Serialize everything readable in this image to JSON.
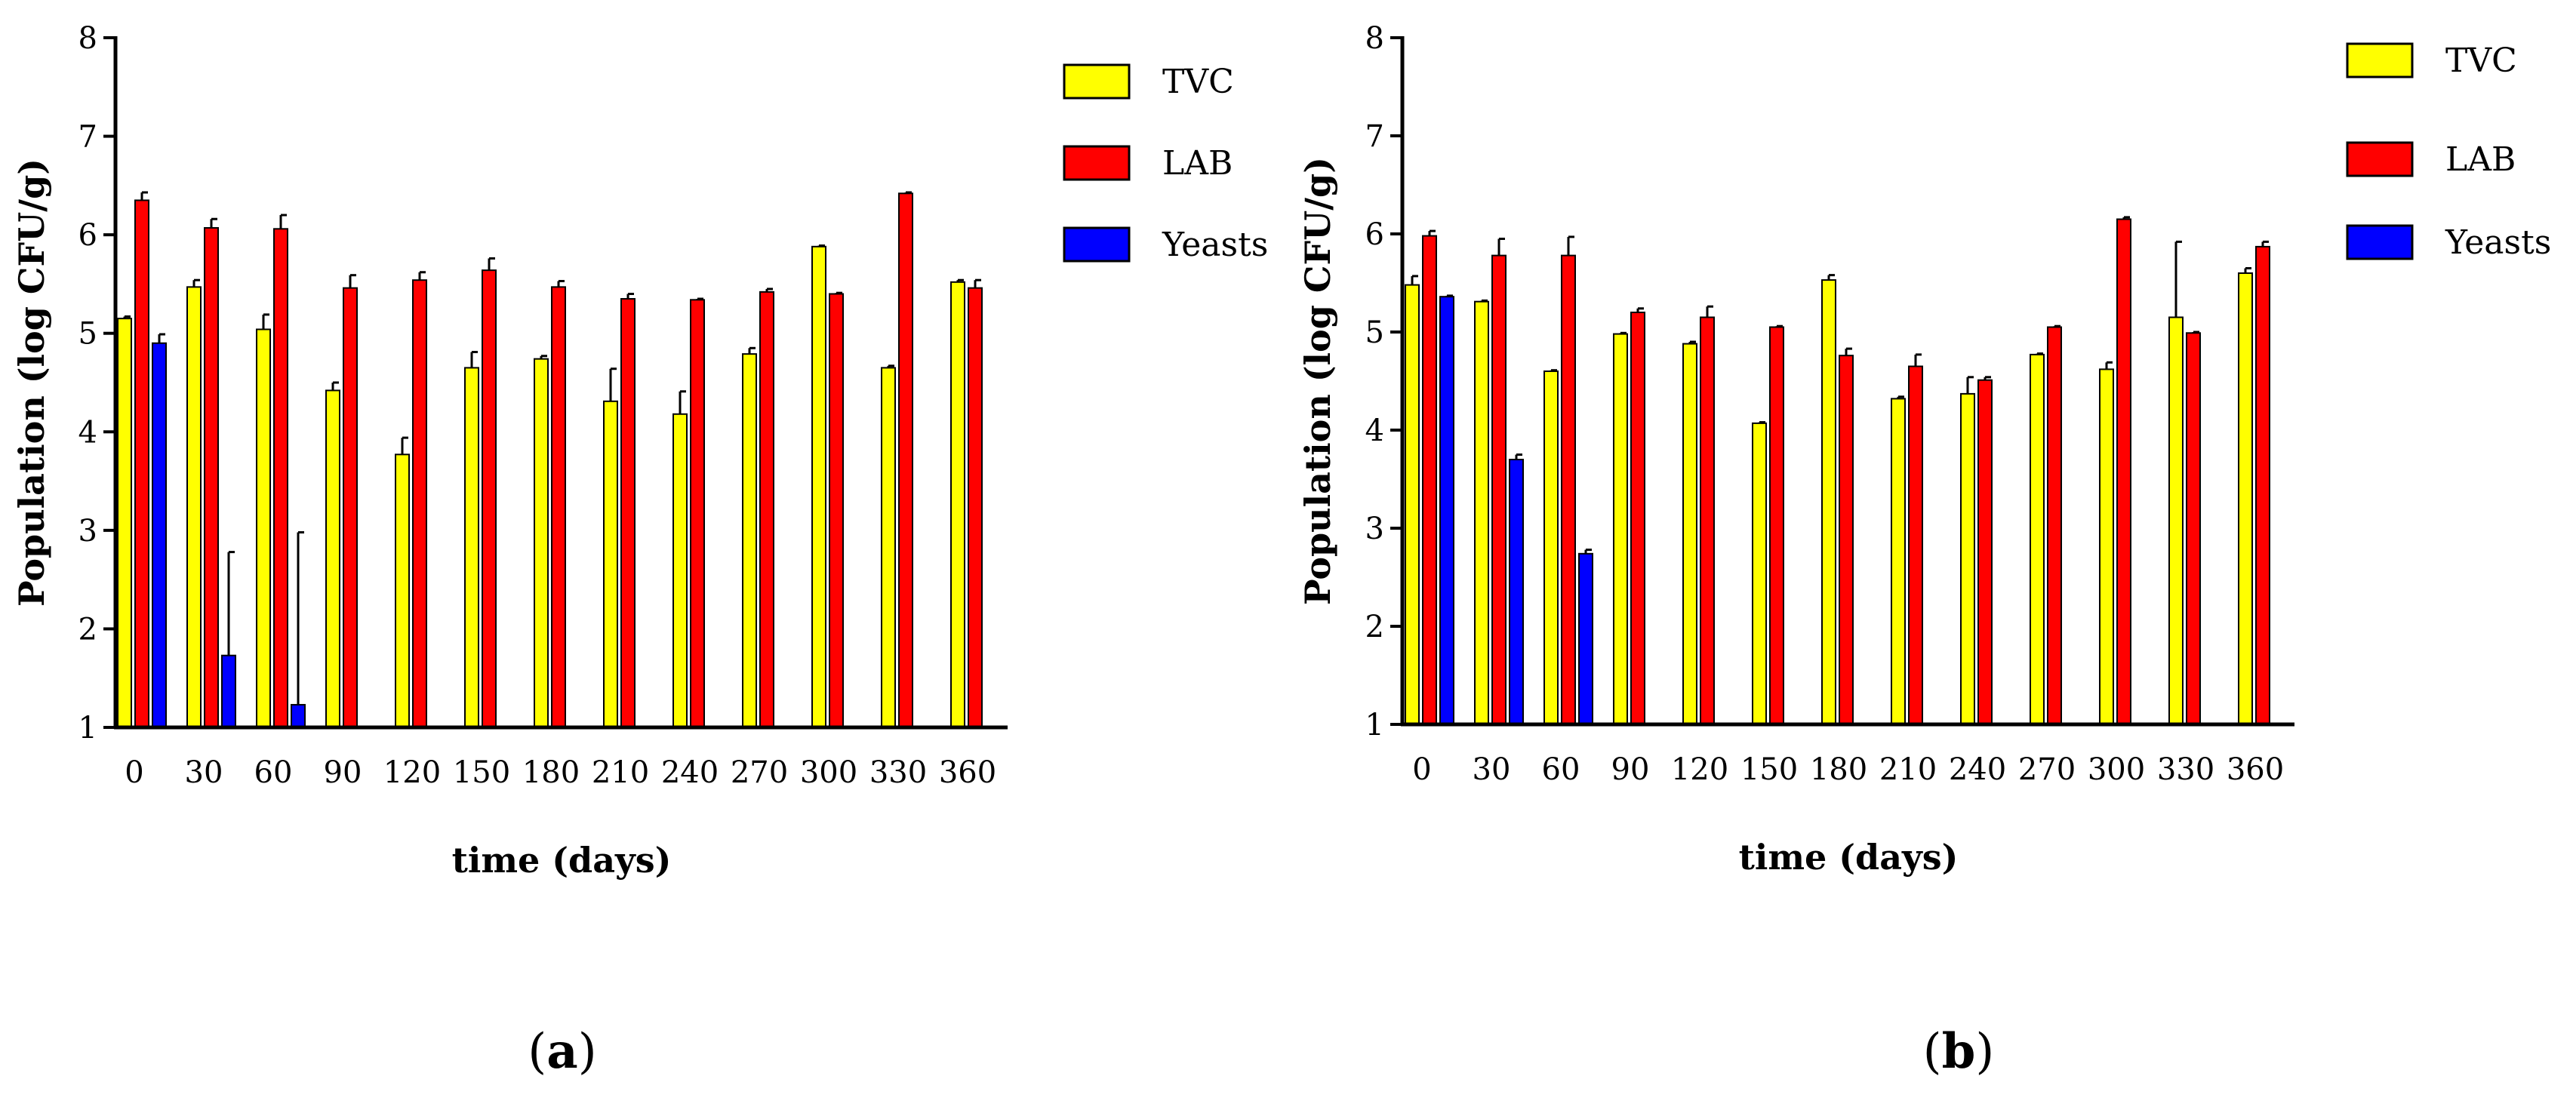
{
  "chart_data": [
    {
      "type": "bar",
      "panel": "a",
      "panel_label": "a",
      "xlabel": "time (days)",
      "ylabel": "Population (log CFU/g)",
      "ylim": [
        1,
        8
      ],
      "yticks": [
        "1",
        "2",
        "3",
        "4",
        "5",
        "6",
        "7",
        "8"
      ],
      "categories": [
        "0",
        "30",
        "60",
        "90",
        "120",
        "150",
        "180",
        "210",
        "240",
        "270",
        "300",
        "330",
        "360"
      ],
      "series": [
        {
          "name": "TVC",
          "color": "#ffff00",
          "values": [
            5.15,
            5.47,
            5.04,
            4.42,
            3.77,
            4.65,
            4.74,
            4.31,
            4.18,
            4.79,
            5.88,
            4.65,
            5.52
          ],
          "errors": [
            0.02,
            0.07,
            0.15,
            0.08,
            0.17,
            0.16,
            0.03,
            0.33,
            0.23,
            0.06,
            0.01,
            0.02,
            0.02
          ]
        },
        {
          "name": "LAB",
          "color": "#ff0000",
          "values": [
            6.35,
            6.07,
            6.06,
            5.46,
            5.54,
            5.64,
            5.47,
            5.35,
            5.34,
            5.42,
            5.4,
            6.42,
            5.46
          ],
          "errors": [
            0.08,
            0.09,
            0.14,
            0.13,
            0.08,
            0.12,
            0.06,
            0.05,
            0.01,
            0.03,
            0.01,
            0.01,
            0.08
          ]
        },
        {
          "name": "Yeasts",
          "color": "#0000ff",
          "values": [
            4.9,
            1.73,
            1.23,
            null,
            null,
            null,
            null,
            null,
            null,
            null,
            null,
            null,
            null
          ],
          "errors": [
            0.09,
            1.05,
            1.75,
            null,
            null,
            null,
            null,
            null,
            null,
            null,
            null,
            null,
            null
          ]
        }
      ]
    },
    {
      "type": "bar",
      "panel": "b",
      "panel_label": "b",
      "xlabel": "time (days)",
      "ylabel": "Population (log CFU/g)",
      "ylim": [
        1,
        8
      ],
      "yticks": [
        "1",
        "2",
        "3",
        "4",
        "5",
        "6",
        "7",
        "8"
      ],
      "categories": [
        "0",
        "30",
        "60",
        "90",
        "120",
        "150",
        "180",
        "210",
        "240",
        "270",
        "300",
        "330",
        "360"
      ],
      "series": [
        {
          "name": "TVC",
          "color": "#ffff00",
          "values": [
            5.48,
            5.31,
            4.6,
            4.98,
            4.88,
            4.07,
            5.53,
            4.32,
            4.37,
            4.77,
            4.62,
            5.15,
            5.6
          ],
          "errors": [
            0.09,
            0.01,
            0.01,
            0.01,
            0.02,
            0.01,
            0.05,
            0.02,
            0.17,
            0.01,
            0.07,
            0.77,
            0.05
          ]
        },
        {
          "name": "LAB",
          "color": "#ff0000",
          "values": [
            5.98,
            5.78,
            5.78,
            5.2,
            5.15,
            5.05,
            4.76,
            4.65,
            4.51,
            5.05,
            6.15,
            4.99,
            5.87
          ],
          "errors": [
            0.05,
            0.17,
            0.19,
            0.04,
            0.11,
            0.01,
            0.07,
            0.12,
            0.03,
            0.01,
            0.02,
            0.01,
            0.05
          ]
        },
        {
          "name": "Yeasts",
          "color": "#0000ff",
          "values": [
            5.36,
            3.7,
            2.74,
            null,
            null,
            null,
            null,
            null,
            null,
            null,
            null,
            null,
            null
          ],
          "errors": [
            0.01,
            0.05,
            0.04,
            null,
            null,
            null,
            null,
            null,
            null,
            null,
            null,
            null,
            null
          ]
        }
      ]
    }
  ]
}
